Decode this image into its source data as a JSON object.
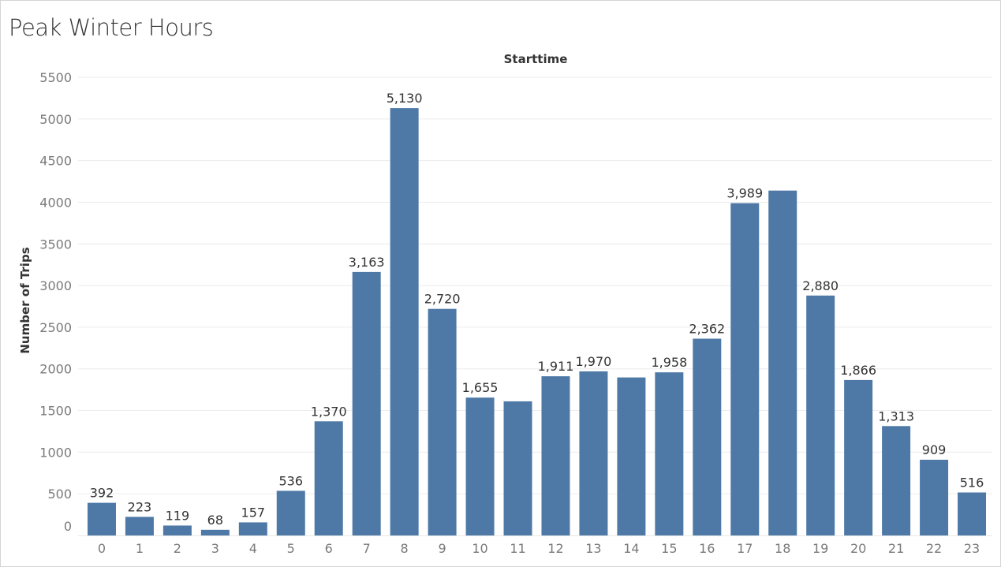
{
  "title": "Peak Winter Hours",
  "chart_data": {
    "type": "bar",
    "title": "Peak Winter Hours",
    "column_header": "Starttime",
    "xlabel": "",
    "ylabel": "Number of Trips",
    "categories": [
      "0",
      "1",
      "2",
      "3",
      "4",
      "5",
      "6",
      "7",
      "8",
      "9",
      "10",
      "11",
      "12",
      "13",
      "14",
      "15",
      "16",
      "17",
      "18",
      "19",
      "20",
      "21",
      "22",
      "23"
    ],
    "values": [
      392,
      223,
      119,
      68,
      157,
      536,
      1370,
      3163,
      5130,
      2720,
      1655,
      1610,
      1911,
      1970,
      1897,
      1958,
      2362,
      3989,
      4140,
      2880,
      1866,
      1313,
      909,
      516
    ],
    "data_labels": [
      "392",
      "223",
      "119",
      "68",
      "157",
      "536",
      "1,370",
      "3,163",
      "5,130",
      "2,720",
      "1,655",
      "",
      "1,911",
      "1,970",
      "",
      "1,958",
      "2,362",
      "3,989",
      "",
      "2,880",
      "1,866",
      "1,313",
      "909",
      "516"
    ],
    "yticks": [
      0,
      500,
      1000,
      1500,
      2000,
      2500,
      3000,
      3500,
      4000,
      4500,
      5000,
      5500
    ],
    "ylim": [
      0,
      5500
    ],
    "grid": true,
    "bar_color": "#4e79a7"
  }
}
